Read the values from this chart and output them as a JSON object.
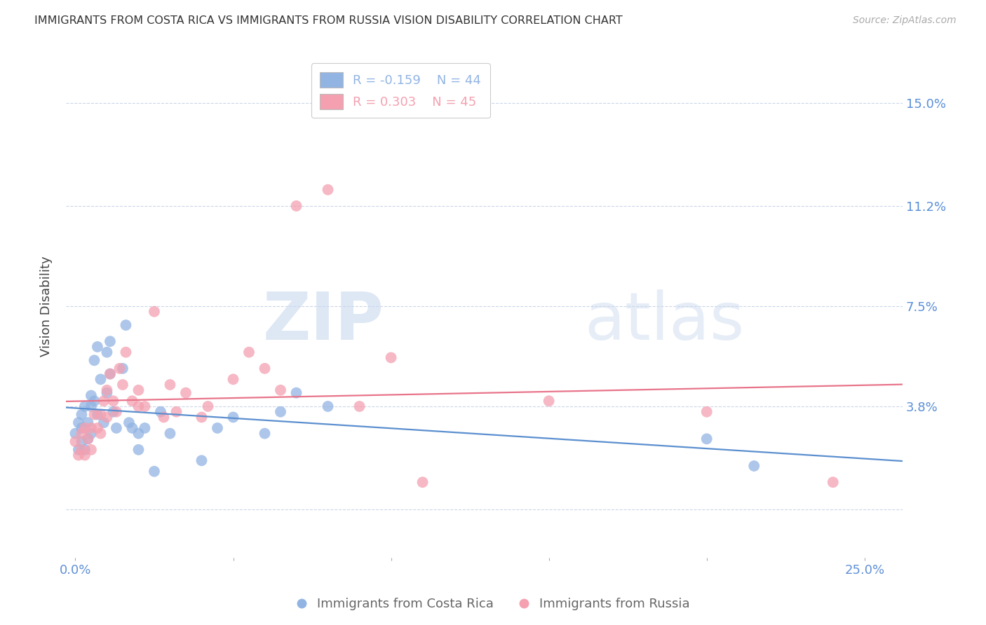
{
  "title": "IMMIGRANTS FROM COSTA RICA VS IMMIGRANTS FROM RUSSIA VISION DISABILITY CORRELATION CHART",
  "source": "Source: ZipAtlas.com",
  "ylabel": "Vision Disability",
  "ytick_values": [
    0.0,
    0.038,
    0.075,
    0.112,
    0.15
  ],
  "ytick_labels": [
    "",
    "3.8%",
    "7.5%",
    "11.2%",
    "15.0%"
  ],
  "xlim": [
    -0.003,
    0.262
  ],
  "ylim": [
    -0.018,
    0.168
  ],
  "watermark_zip": "ZIP",
  "watermark_atlas": "atlas",
  "series": [
    {
      "label": "Immigrants from Costa Rica",
      "color": "#92b4e3",
      "line_color": "#5b8fcf",
      "R": -0.159,
      "N": 44,
      "x": [
        0.0,
        0.001,
        0.001,
        0.002,
        0.002,
        0.002,
        0.003,
        0.003,
        0.004,
        0.004,
        0.005,
        0.005,
        0.005,
        0.006,
        0.006,
        0.007,
        0.007,
        0.008,
        0.009,
        0.01,
        0.01,
        0.011,
        0.011,
        0.012,
        0.013,
        0.015,
        0.016,
        0.017,
        0.018,
        0.02,
        0.02,
        0.022,
        0.025,
        0.027,
        0.03,
        0.04,
        0.045,
        0.05,
        0.06,
        0.065,
        0.07,
        0.08,
        0.2,
        0.215
      ],
      "y": [
        0.028,
        0.032,
        0.022,
        0.03,
        0.025,
        0.035,
        0.022,
        0.038,
        0.032,
        0.026,
        0.042,
        0.038,
        0.028,
        0.04,
        0.055,
        0.06,
        0.035,
        0.048,
        0.032,
        0.058,
        0.043,
        0.062,
        0.05,
        0.036,
        0.03,
        0.052,
        0.068,
        0.032,
        0.03,
        0.028,
        0.022,
        0.03,
        0.014,
        0.036,
        0.028,
        0.018,
        0.03,
        0.034,
        0.028,
        0.036,
        0.043,
        0.038,
        0.026,
        0.016
      ]
    },
    {
      "label": "Immigrants from Russia",
      "color": "#f4a0b0",
      "line_color": "#e8748a",
      "R": 0.303,
      "N": 45,
      "x": [
        0.0,
        0.001,
        0.002,
        0.002,
        0.003,
        0.003,
        0.004,
        0.005,
        0.005,
        0.006,
        0.007,
        0.008,
        0.008,
        0.009,
        0.01,
        0.01,
        0.011,
        0.012,
        0.013,
        0.014,
        0.015,
        0.016,
        0.018,
        0.02,
        0.02,
        0.022,
        0.025,
        0.028,
        0.03,
        0.032,
        0.035,
        0.04,
        0.042,
        0.05,
        0.055,
        0.06,
        0.065,
        0.07,
        0.08,
        0.09,
        0.1,
        0.11,
        0.15,
        0.2,
        0.24
      ],
      "y": [
        0.025,
        0.02,
        0.028,
        0.022,
        0.03,
        0.02,
        0.026,
        0.03,
        0.022,
        0.035,
        0.03,
        0.035,
        0.028,
        0.04,
        0.044,
        0.034,
        0.05,
        0.04,
        0.036,
        0.052,
        0.046,
        0.058,
        0.04,
        0.044,
        0.038,
        0.038,
        0.073,
        0.034,
        0.046,
        0.036,
        0.043,
        0.034,
        0.038,
        0.048,
        0.058,
        0.052,
        0.044,
        0.112,
        0.118,
        0.038,
        0.056,
        0.01,
        0.04,
        0.036,
        0.01
      ]
    }
  ],
  "background_color": "#ffffff",
  "grid_color": "#ccd6e8",
  "tick_color": "#6090d8",
  "title_color": "#333333",
  "ytick_label_color": "#5b8fd8"
}
